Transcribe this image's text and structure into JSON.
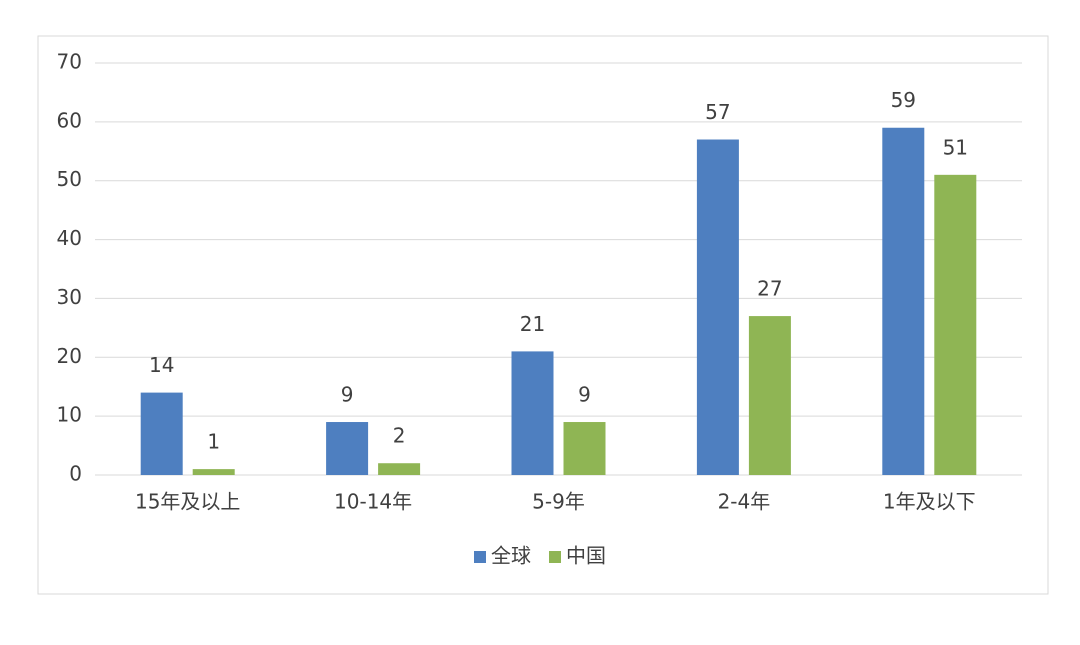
{
  "chart_data": {
    "type": "bar",
    "categories": [
      "15年及以上",
      "10-14年",
      "5-9年",
      "2-4年",
      "1年及以下"
    ],
    "series": [
      {
        "name": "全球",
        "color": "#4e7fc0",
        "values": [
          14,
          9,
          21,
          57,
          59
        ]
      },
      {
        "name": "中国",
        "color": "#8fb554",
        "values": [
          1,
          2,
          9,
          27,
          51
        ]
      }
    ],
    "ylim": [
      0,
      70
    ],
    "yticks": [
      0,
      10,
      20,
      30,
      40,
      50,
      60,
      70
    ],
    "grid": true,
    "legend": "bottom"
  }
}
